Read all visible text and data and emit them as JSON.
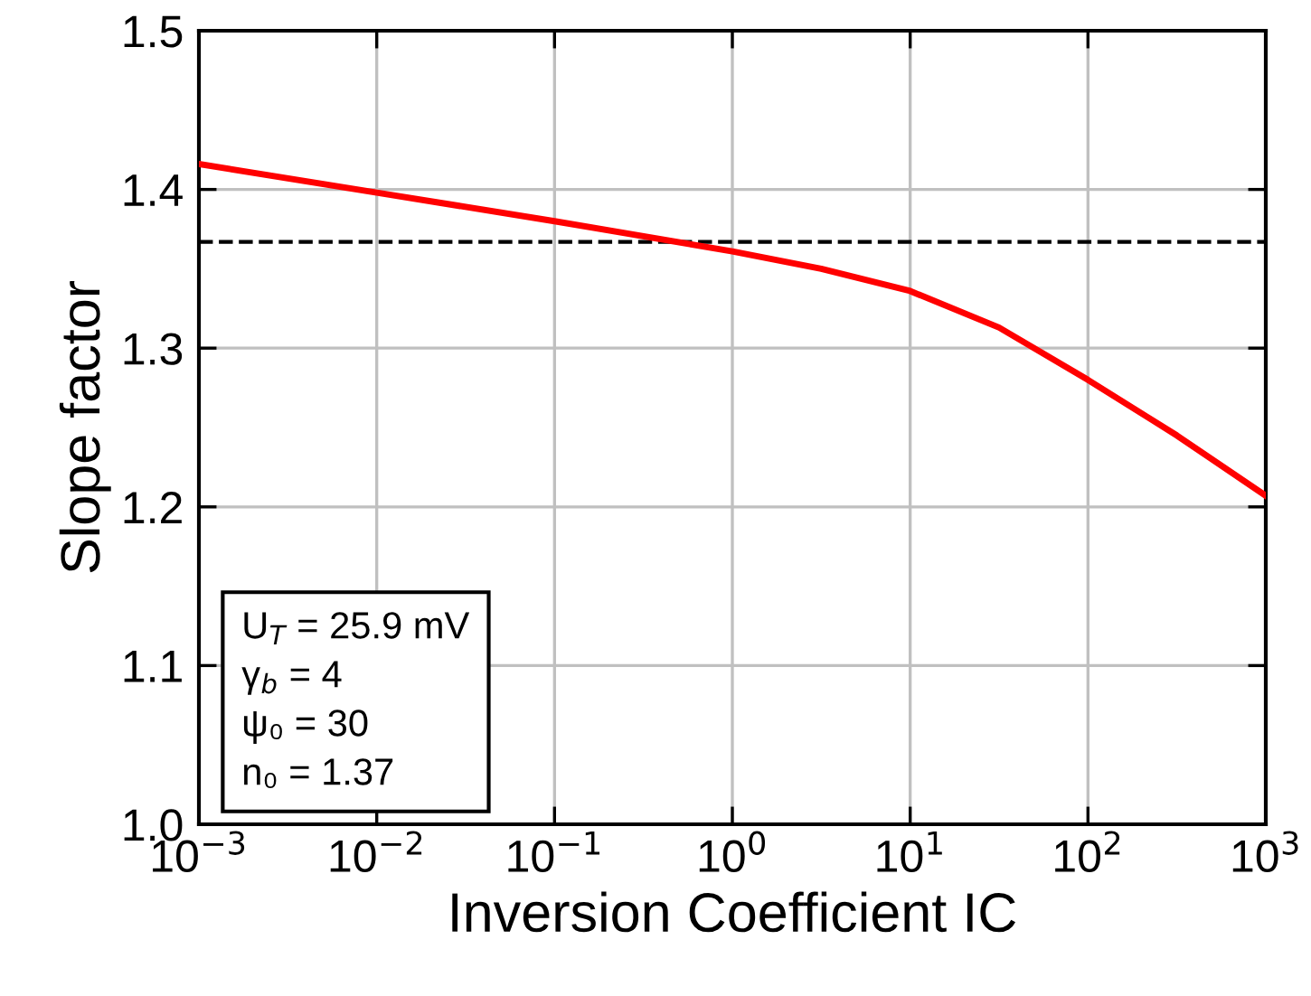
{
  "chart_data": {
    "type": "line",
    "xlabel": "Inversion Coefficient IC",
    "ylabel": "Slope factor",
    "x": [
      0.001,
      0.01,
      0.1,
      1,
      3.16,
      10,
      31.6,
      100,
      316,
      1000
    ],
    "series": [
      {
        "color": "#ff0000",
        "values": [
          1.416,
          1.398,
          1.38,
          1.361,
          1.35,
          1.336,
          1.313,
          1.28,
          1.245,
          1.207
        ]
      }
    ],
    "log": "x",
    "xlim": [
      0.001,
      1000
    ],
    "ylim": [
      1.0,
      1.5
    ],
    "xticks": [
      {
        "value": 0.001,
        "label": "10$^{−3}$"
      },
      {
        "value": 0.01,
        "label": "10$^{−2}$"
      },
      {
        "value": 0.1,
        "label": "10$^{−1}$"
      },
      {
        "value": 1,
        "label": "10$^{0}$"
      },
      {
        "value": 10,
        "label": "10$^{1}$"
      },
      {
        "value": 100,
        "label": "10$^{2}$"
      },
      {
        "value": 1000,
        "label": "10$^{3}$"
      }
    ],
    "yticks": [
      {
        "value": 1.0,
        "label": "1.0"
      },
      1.1,
      1.2,
      1.3,
      1.4,
      {
        "value": 1.5,
        "label": "1.5"
      }
    ],
    "grid": true,
    "line_style": "solid",
    "marker": "none",
    "ref_lines": [
      {
        "axis": "y",
        "value": 1.367,
        "color": "#000000",
        "line_style": "dashed"
      }
    ],
    "annotations": [
      "U$_{T}$ = 25.9 mV",
      "γ$_{b}$ = 4",
      "ψ₀ = 30",
      "n₀ = 1.37"
    ]
  }
}
